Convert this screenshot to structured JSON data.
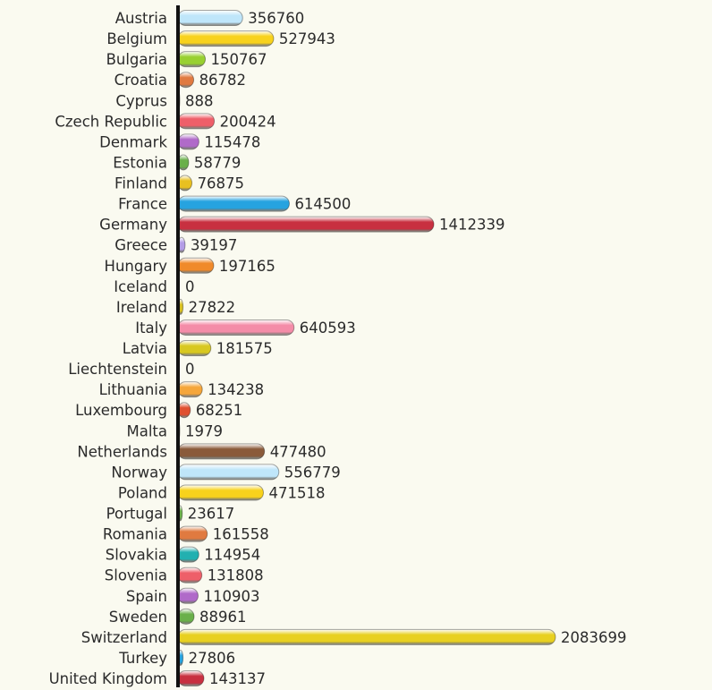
{
  "chart_data": {
    "type": "bar",
    "orientation": "horizontal",
    "title": "",
    "xlabel": "",
    "ylabel": "",
    "grid": false,
    "xlim": [
      0,
      2083699
    ],
    "categories": [
      "Austria",
      "Belgium",
      "Bulgaria",
      "Croatia",
      "Cyprus",
      "Czech Republic",
      "Denmark",
      "Estonia",
      "Finland",
      "France",
      "Germany",
      "Greece",
      "Hungary",
      "Iceland",
      "Ireland",
      "Italy",
      "Latvia",
      "Liechtenstein",
      "Lithuania",
      "Luxembourg",
      "Malta",
      "Netherlands",
      "Norway",
      "Poland",
      "Portugal",
      "Romania",
      "Slovakia",
      "Slovenia",
      "Spain",
      "Sweden",
      "Switzerland",
      "Turkey",
      "United Kingdom"
    ],
    "values": [
      356760,
      527943,
      150767,
      86782,
      888,
      200424,
      115478,
      58779,
      76875,
      614500,
      1412339,
      39197,
      197165,
      0,
      27822,
      640593,
      181575,
      0,
      134238,
      68251,
      1979,
      477480,
      556779,
      471518,
      23617,
      161558,
      114954,
      131808,
      110903,
      88961,
      2083699,
      27806,
      143137
    ],
    "colors": [
      "#bfe6fa",
      "#f8d21c",
      "#98d030",
      "#e07a40",
      "#bfe6fa",
      "#ee5f69",
      "#b06ac9",
      "#6ab04a",
      "#e8c020",
      "#26a3e0",
      "#c83040",
      "#b49de6",
      "#f08a2a",
      "#f8d21c",
      "#d8c020",
      "#f48ca8",
      "#d8c820",
      "#f8d21c",
      "#f5a63a",
      "#e05030",
      "#98d030",
      "#8a5a3a",
      "#bfe6fa",
      "#f8d21c",
      "#6ab04a",
      "#e07a40",
      "#22b0b0",
      "#ee5f69",
      "#b06ac9",
      "#6ab04a",
      "#e8d020",
      "#26a3e0",
      "#c83040"
    ]
  }
}
